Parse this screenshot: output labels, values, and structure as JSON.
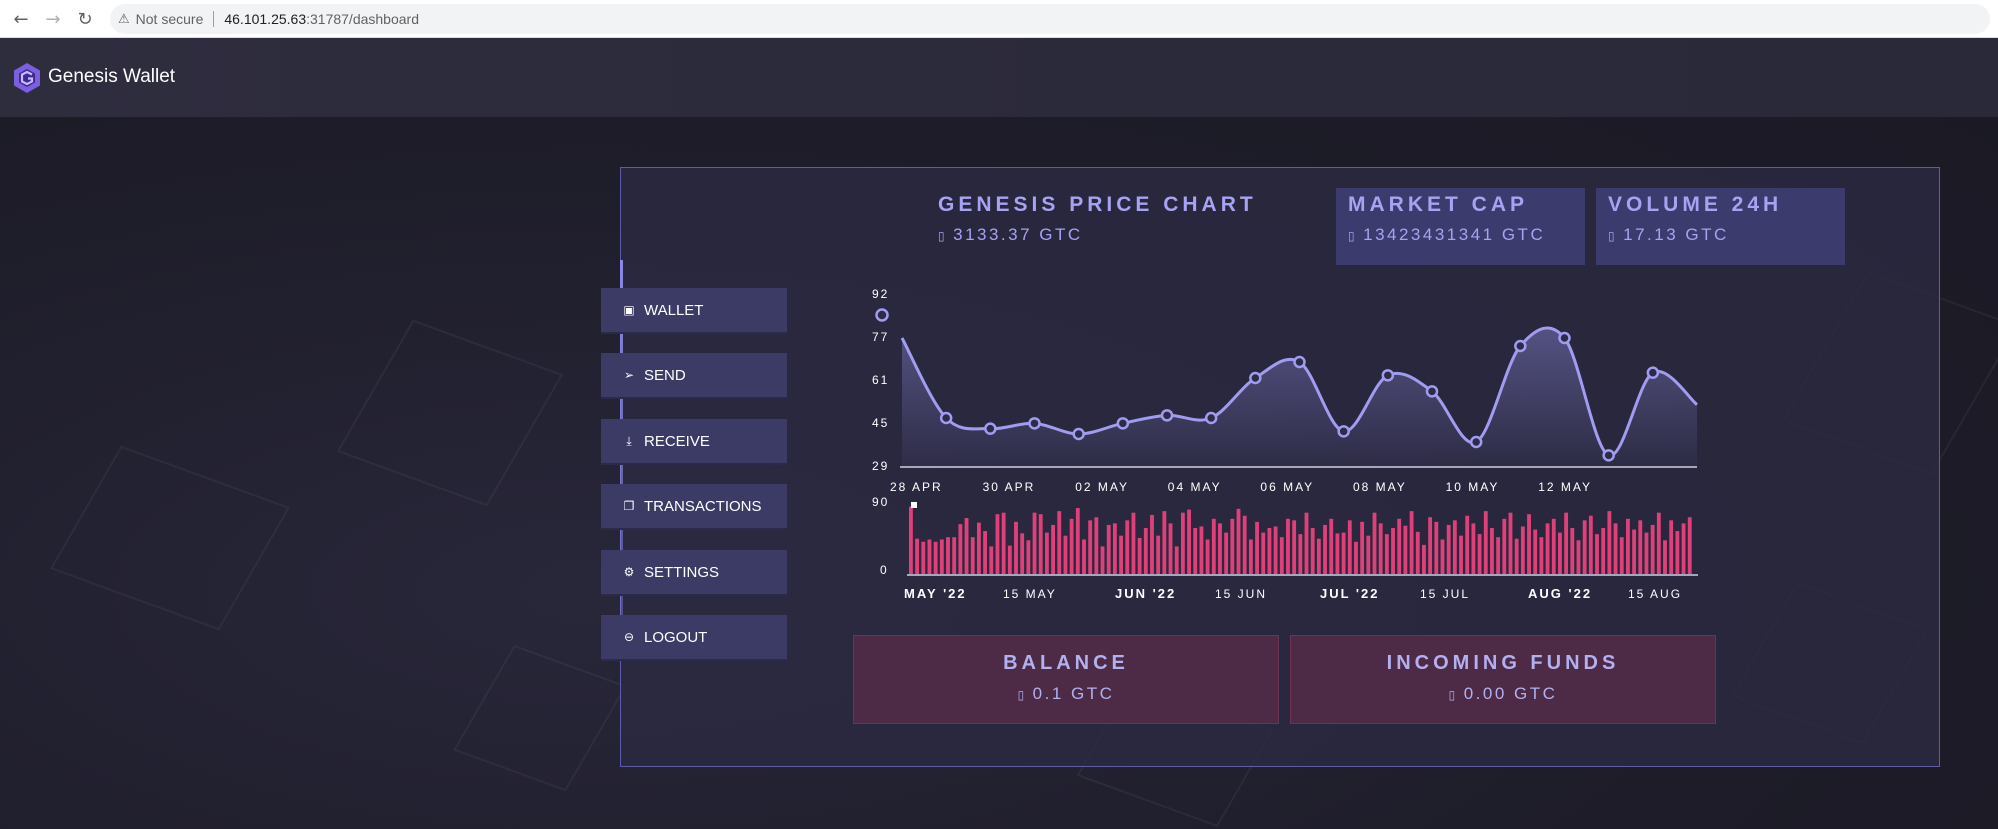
{
  "browser": {
    "security_label": "Not secure",
    "url_host": "46.101.25.63",
    "url_port_path": ":31787/dashboard"
  },
  "app": {
    "brand": "Genesis Wallet"
  },
  "menu": [
    {
      "label": "WALLET",
      "icon": "wallet-icon",
      "glyph": "▣"
    },
    {
      "label": "SEND",
      "icon": "send-icon",
      "glyph": "➢"
    },
    {
      "label": "RECEIVE",
      "icon": "download-icon",
      "glyph": "⤓"
    },
    {
      "label": "TRANSACTIONS",
      "icon": "transactions-icon",
      "glyph": "❐"
    },
    {
      "label": "SETTINGS",
      "icon": "gear-icon",
      "glyph": "⚙"
    },
    {
      "label": "LOGOUT",
      "icon": "logout-icon",
      "glyph": "⊖"
    }
  ],
  "stats": {
    "price": {
      "title": "GENESIS PRICE CHART",
      "value": "3133.37 GTC"
    },
    "market_cap": {
      "title": "MARKET CAP",
      "value": "13423431341 GTC"
    },
    "volume": {
      "title": "VOLUME 24H",
      "value": "17.13 GTC"
    }
  },
  "funds": {
    "balance": {
      "title": "BALANCE",
      "value": "0.1 GTC"
    },
    "incoming": {
      "title": "INCOMING FUNDS",
      "value": "0.00 GTC"
    }
  },
  "currency_glyph": "▯",
  "colors": {
    "accent": "#a6a3f2",
    "line": "#a09df0",
    "bar": "#e0407a",
    "menu_bg": "#3b3b66"
  },
  "chart_data": [
    {
      "type": "area",
      "x_tick_labels": [
        "28 APR",
        "30 APR",
        "02 MAY",
        "04 MAY",
        "06 MAY",
        "08 MAY",
        "10 MAY",
        "12 MAY"
      ],
      "y_tick_labels": [
        "92",
        "77",
        "61",
        "45",
        "29"
      ],
      "ylim": [
        29,
        92
      ],
      "values": [
        77,
        47,
        43,
        45,
        41,
        45,
        48,
        47,
        62,
        68,
        42,
        63,
        57,
        38,
        74,
        77,
        33,
        64,
        52
      ],
      "grid": false
    },
    {
      "type": "bar",
      "x_tick_labels": [
        "MAY '22",
        "15 MAY",
        "JUN '22",
        "15 JUN",
        "JUL '22",
        "15 JUL",
        "AUG '22",
        "15 AUG"
      ],
      "y_tick_labels": [
        "90",
        "0"
      ],
      "ylim": [
        0,
        90
      ],
      "values": [
        88,
        46,
        42,
        45,
        42,
        45,
        48,
        48,
        65,
        73,
        48,
        67,
        56,
        36,
        78,
        80,
        37,
        68,
        53,
        44,
        80,
        78,
        54,
        64,
        82,
        50,
        72,
        86,
        45,
        70,
        74,
        36,
        64,
        66,
        50,
        70,
        80,
        47,
        60,
        77,
        50,
        82,
        66,
        36,
        80,
        84,
        60,
        62,
        45,
        72,
        66,
        54,
        72,
        85,
        76,
        45,
        68,
        54,
        60,
        62,
        48,
        72,
        70,
        52,
        80,
        60,
        46,
        64,
        72,
        53,
        54,
        70,
        42,
        68,
        50,
        80,
        66,
        52,
        60,
        72,
        63,
        82,
        55,
        38,
        74,
        68,
        45,
        64,
        70,
        50,
        76,
        66,
        52,
        82,
        60,
        48,
        72,
        80,
        46,
        62,
        78,
        58,
        48,
        66,
        72,
        54,
        80,
        60,
        44,
        70,
        76,
        52,
        60,
        82,
        66,
        48,
        72,
        58,
        70,
        54,
        64,
        80,
        44,
        70,
        56,
        66,
        74
      ],
      "grid": false
    }
  ]
}
